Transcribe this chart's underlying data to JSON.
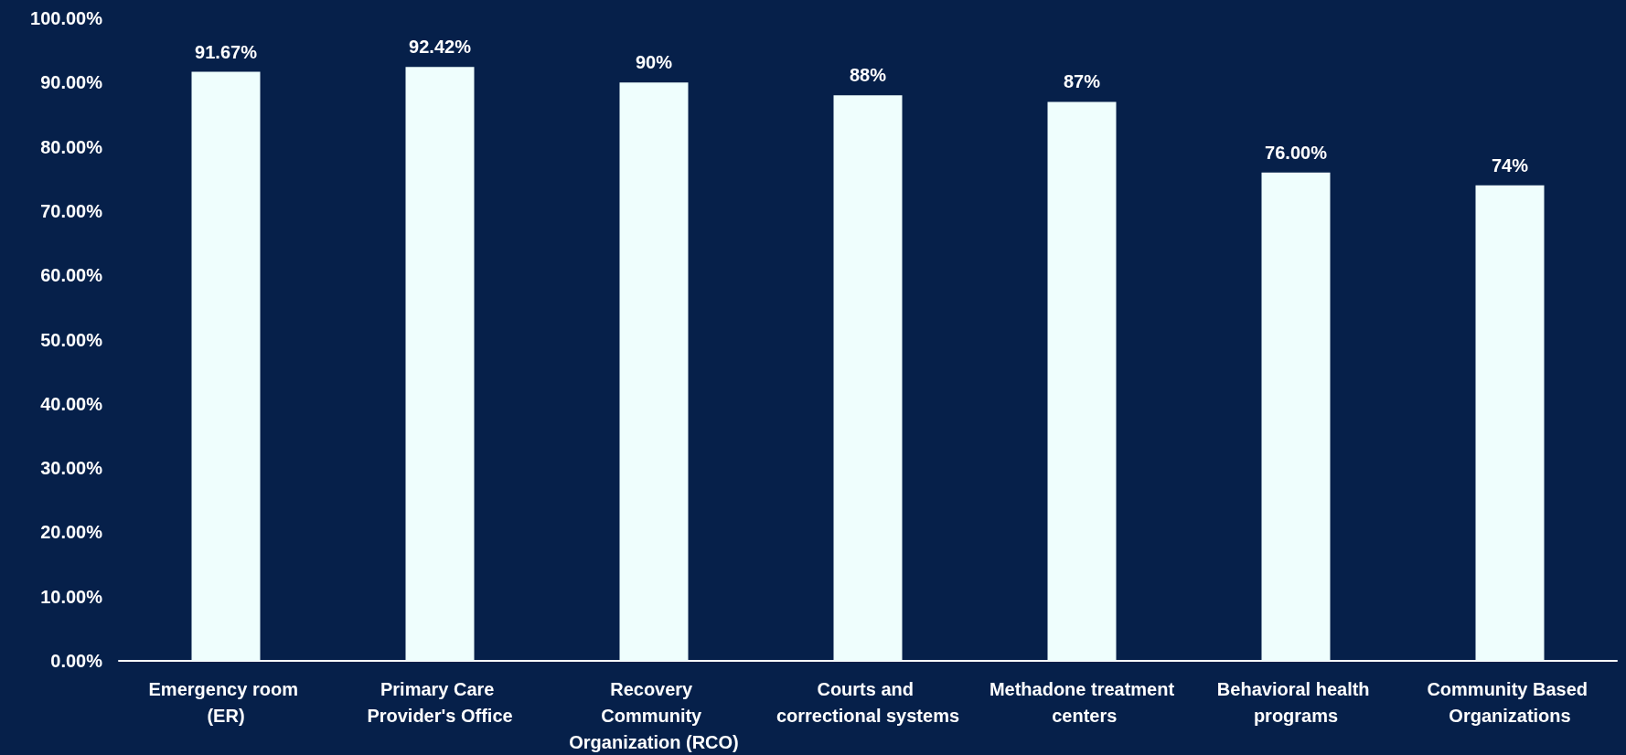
{
  "chart_data": {
    "type": "bar",
    "categories": [
      "Emergency room (ER)",
      "Primary Care Provider's Office",
      "Recovery Community Organization (RCO)",
      "Courts and correctional systems",
      "Methadone treatment centers",
      "Behavioral health programs",
      "Community Based Organizations"
    ],
    "values": [
      91.67,
      92.42,
      90,
      88,
      87,
      76,
      74
    ],
    "value_labels": [
      "91.67%",
      "92.42%",
      "90%",
      "88%",
      "87%",
      "76.00%",
      "74%"
    ],
    "color": "#effefd",
    "ylim": [
      0,
      100
    ],
    "yticks": [
      {
        "value": 0,
        "label": "0.00%"
      },
      {
        "value": 10,
        "label": "10.00%"
      },
      {
        "value": 20,
        "label": "20.00%"
      },
      {
        "value": 30,
        "label": "30.00%"
      },
      {
        "value": 40,
        "label": "40.00%"
      },
      {
        "value": 50,
        "label": "50.00%"
      },
      {
        "value": 60,
        "label": "60.00%"
      },
      {
        "value": 70,
        "label": "70.00%"
      },
      {
        "value": 80,
        "label": "80.00%"
      },
      {
        "value": 90,
        "label": "90.00%"
      },
      {
        "value": 100,
        "label": "100.00%"
      }
    ],
    "grid": false
  }
}
